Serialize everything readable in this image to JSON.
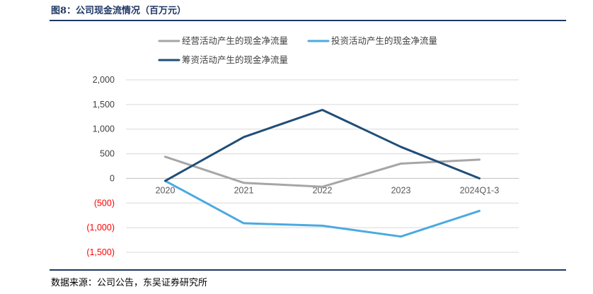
{
  "figure": {
    "title": "图8：公司现金流情况（百万元）",
    "source": "数据来源：公司公告，东吴证券研究所"
  },
  "chart_data": {
    "type": "line",
    "x": [
      "2020",
      "2021",
      "2022",
      "2023",
      "2024Q1-3"
    ],
    "ylim": [
      -1500,
      2000
    ],
    "yticks": [
      2000,
      1500,
      1000,
      500,
      0,
      -500,
      -1000,
      -1500
    ],
    "ytick_labels": [
      "2,000",
      "1,500",
      "1,000",
      "500",
      "0",
      "(500)",
      "(1,000)",
      "(1,500)"
    ],
    "negative_tick_color": "#ff0000",
    "legend_position": "top",
    "grid": true,
    "series": [
      {
        "name": "经营活动产生的现金净流量",
        "values": [
          440,
          -90,
          -170,
          300,
          380
        ],
        "color": "#a6a6a6"
      },
      {
        "name": "投资活动产生的现金净流量",
        "values": [
          -50,
          -910,
          -960,
          -1180,
          -660
        ],
        "color": "#4ba9e2"
      },
      {
        "name": "筹资活动产生的现金净流量",
        "values": [
          -50,
          840,
          1390,
          640,
          0
        ],
        "color": "#1f4e79"
      }
    ]
  }
}
